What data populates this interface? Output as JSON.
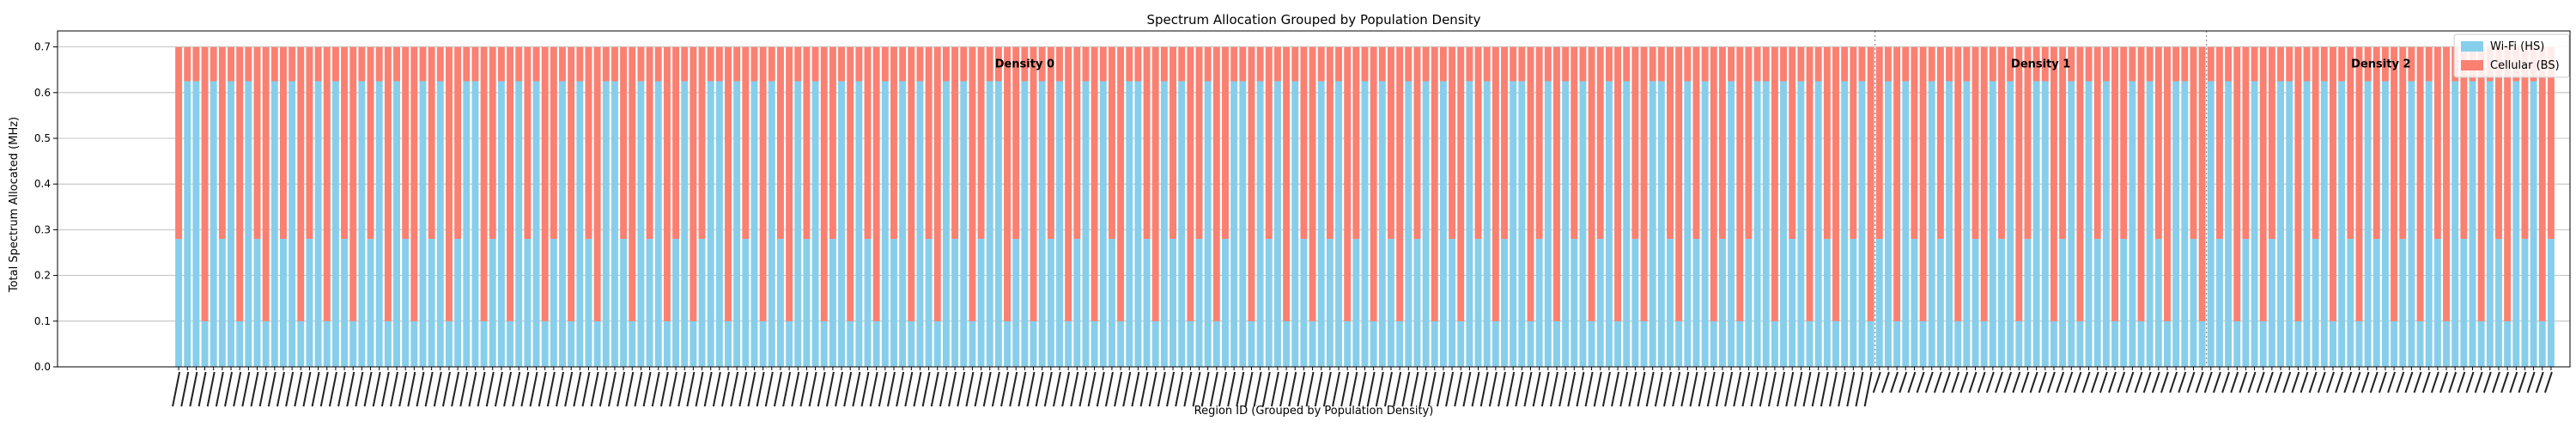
{
  "chart_data": {
    "type": "bar",
    "stacked": true,
    "title": "Spectrum Allocation Grouped by Population Density",
    "xlabel": "Region ID (Grouped by Population Density)",
    "ylabel": "Total Spectrum Allocated (MHz)",
    "ylim": [
      0,
      0.735
    ],
    "yticks": [
      "0.0",
      "0.1",
      "0.2",
      "0.3",
      "0.4",
      "0.5",
      "0.6",
      "0.7"
    ],
    "grid": true,
    "legend_position": "top-right",
    "region_count": 273,
    "groups": [
      {
        "label": "Density 0",
        "start": 0,
        "end": 195
      },
      {
        "label": "Density 1",
        "start": 195,
        "end": 233
      },
      {
        "label": "Density 2",
        "start": 233,
        "end": 273
      }
    ],
    "series": [
      {
        "name": "Wi-Fi (HS)",
        "color": "#87ceeb"
      },
      {
        "name": "Cellular (BS)",
        "color": "#fa8072"
      }
    ],
    "total_value": 0.7,
    "wifi_levels": [
      0.1,
      0.28,
      0.625
    ],
    "wifi_pattern": [
      0.28,
      0.625,
      0.625,
      0.1,
      0.625,
      0.28,
      0.625,
      0.1,
      0.625,
      0.28,
      0.1,
      0.625,
      0.28,
      0.625,
      0.1,
      0.28,
      0.625,
      0.1,
      0.625,
      0.28,
      0.1,
      0.625,
      0.28,
      0.625,
      0.1,
      0.625,
      0.28,
      0.1,
      0.625,
      0.28,
      0.625,
      0.1,
      0.28,
      0.625,
      0.625,
      0.1,
      0.28,
      0.625,
      0.1,
      0.625,
      0.28,
      0.625,
      0.1,
      0.28,
      0.625,
      0.1,
      0.625,
      0.28,
      0.1,
      0.625,
      0.625,
      0.28,
      0.1,
      0.625,
      0.28,
      0.625,
      0.1,
      0.28,
      0.625,
      0.1
    ]
  }
}
